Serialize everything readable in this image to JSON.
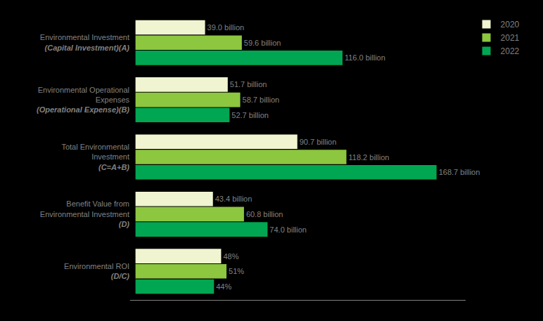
{
  "chart_data": {
    "type": "bar",
    "orientation": "horizontal",
    "categories": [
      "Environmental Investment\n(Capital Investment)(A)",
      "Environmental Operational\nExpenses\n(Operational Expense)(B)",
      "Total Environmental\nInvestment\n(C=A+B)",
      "Benefit Value from\nEnvironmental Investment\n(D)",
      "Environmental ROI\n(D/C)"
    ],
    "series": [
      {
        "name": "2020",
        "color": "#f0f4d0",
        "values": [
          39.0,
          51.7,
          90.7,
          43.4,
          48
        ],
        "value_labels": [
          "39.0 billion",
          "51.7 billion",
          "90.7 billion",
          "43.4 billion",
          "48%"
        ]
      },
      {
        "name": "2021",
        "color": "#8dc63f",
        "values": [
          59.6,
          58.7,
          118.2,
          60.8,
          51
        ],
        "value_labels": [
          "59.6 billion",
          "58.7 billion",
          "118.2 billion",
          "60.8 billion",
          "51%"
        ]
      },
      {
        "name": "2022",
        "color": "#00a651",
        "values": [
          116.0,
          52.7,
          168.7,
          74.0,
          44
        ],
        "value_labels": [
          "116.0 billion",
          "52.7 billion",
          "168.7 billion",
          "74.0 billion",
          "44%"
        ]
      }
    ],
    "xlim": [
      -3,
      185
    ],
    "xticks": [],
    "data_labels": true,
    "tick_labels": "y",
    "grid": false,
    "legend": "upper right"
  }
}
